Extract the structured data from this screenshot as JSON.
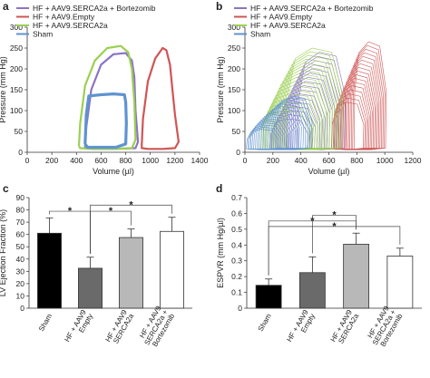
{
  "chart_data": [
    {
      "panel": "a",
      "type": "line",
      "xlabel": "Volume (µl)",
      "ylabel": "Pressure (mm Hg)",
      "xlim": [
        0,
        1400
      ],
      "ylim": [
        0,
        300
      ],
      "xticks": [
        0,
        200,
        400,
        600,
        800,
        1000,
        1200,
        1400
      ],
      "yticks": [
        0,
        50,
        100,
        150,
        200,
        250,
        300
      ],
      "legend_position": "top-left",
      "grid": false,
      "series": [
        {
          "name": "HF + AAV9.SERCA2a + Bortezomib",
          "color": "#8a74c4",
          "x": [
            470,
            480,
            520,
            600,
            700,
            800,
            850,
            870,
            880,
            900,
            880,
            700,
            540,
            470,
            470
          ],
          "y": [
            15,
            60,
            150,
            210,
            235,
            238,
            220,
            180,
            100,
            25,
            10,
            8,
            8,
            10,
            15
          ]
        },
        {
          "name": "HF + AAV9.Empty",
          "color": "#d05555",
          "x": [
            930,
            940,
            980,
            1040,
            1100,
            1130,
            1160,
            1180,
            1200,
            1230,
            1200,
            1100,
            980,
            930,
            930
          ],
          "y": [
            15,
            80,
            170,
            225,
            250,
            245,
            210,
            150,
            90,
            25,
            10,
            8,
            8,
            10,
            15
          ]
        },
        {
          "name": "HF + AAV9.SERCA2a",
          "color": "#9ccf52",
          "x": [
            420,
            430,
            470,
            550,
            650,
            760,
            820,
            850,
            870,
            880,
            850,
            700,
            520,
            430,
            420
          ],
          "y": [
            15,
            70,
            160,
            220,
            250,
            255,
            240,
            200,
            120,
            30,
            10,
            8,
            8,
            10,
            15
          ]
        },
        {
          "name": "Sham",
          "color": "#5f93d1",
          "x": [
            470,
            480,
            500,
            600,
            700,
            790,
            800,
            805,
            800,
            720,
            600,
            490,
            470
          ],
          "y": [
            20,
            90,
            135,
            138,
            140,
            138,
            120,
            70,
            20,
            12,
            12,
            12,
            20
          ]
        }
      ]
    },
    {
      "panel": "b",
      "type": "line",
      "xlabel": "Volume (µl)",
      "ylabel": "Pressure (mm Hg)",
      "xlim": [
        0,
        1200
      ],
      "ylim": [
        0,
        300
      ],
      "xticks": [
        0,
        200,
        400,
        600,
        800,
        1000,
        1200
      ],
      "yticks": [
        0,
        50,
        100,
        150,
        200,
        250,
        300
      ],
      "legend_position": "top-left",
      "grid": false,
      "series": [
        {
          "name": "HF + AAV9.SERCA2a + Bortezomib",
          "color": "#8a74c4",
          "note_loops": "family of shrinking loops (vena cava occlusion)",
          "loops": [
            {
              "xmin": 380,
              "xmax": 720,
              "ymax": 240
            },
            {
              "xmin": 330,
              "xmax": 660,
              "ymax": 200
            },
            {
              "xmin": 280,
              "xmax": 590,
              "ymax": 160
            },
            {
              "xmin": 230,
              "xmax": 520,
              "ymax": 120
            },
            {
              "xmin": 180,
              "xmax": 450,
              "ymax": 80
            }
          ]
        },
        {
          "name": "HF + AAV9.Empty",
          "color": "#d05555",
          "loops": [
            {
              "xmin": 780,
              "xmax": 1010,
              "ymax": 265
            },
            {
              "xmin": 740,
              "xmax": 970,
              "ymax": 230
            },
            {
              "xmin": 700,
              "xmax": 930,
              "ymax": 195
            },
            {
              "xmin": 660,
              "xmax": 890,
              "ymax": 160
            },
            {
              "xmin": 620,
              "xmax": 850,
              "ymax": 120
            }
          ]
        },
        {
          "name": "HF + AAV9.SERCA2a",
          "color": "#9ccf52",
          "loops": [
            {
              "xmin": 300,
              "xmax": 700,
              "ymax": 250
            },
            {
              "xmin": 250,
              "xmax": 640,
              "ymax": 215
            },
            {
              "xmin": 200,
              "xmax": 580,
              "ymax": 180
            },
            {
              "xmin": 150,
              "xmax": 520,
              "ymax": 140
            },
            {
              "xmin": 100,
              "xmax": 460,
              "ymax": 100
            }
          ]
        },
        {
          "name": "Sham",
          "color": "#5f93d1",
          "loops": [
            {
              "xmin": 220,
              "xmax": 480,
              "ymax": 135
            },
            {
              "xmin": 160,
              "xmax": 420,
              "ymax": 115
            },
            {
              "xmin": 100,
              "xmax": 360,
              "ymax": 95
            },
            {
              "xmin": 50,
              "xmax": 300,
              "ymax": 75
            },
            {
              "xmin": 10,
              "xmax": 240,
              "ymax": 55
            }
          ]
        }
      ]
    },
    {
      "panel": "c",
      "type": "bar",
      "ylabel": "LV Ejection Fraction (%)",
      "ylim": [
        0,
        90
      ],
      "yticks": [
        0,
        10,
        20,
        30,
        40,
        50,
        60,
        70,
        80,
        90
      ],
      "categories": [
        "Sham",
        "HF + AAV9\nEmpty",
        "HF + AAV9\nSERCA2a",
        "HF + AAV9\nSERCA2a +\nBortezomib"
      ],
      "values": [
        61,
        32.5,
        57.5,
        62.5
      ],
      "errors": [
        12.5,
        9,
        7,
        11.5
      ],
      "colors": [
        "#000000",
        "#6a6a6a",
        "#b8b8b8",
        "#ffffff"
      ],
      "significance": [
        {
          "from": 0,
          "to": 1,
          "label": "*"
        },
        {
          "from": 1,
          "to": 3,
          "label": "*"
        },
        {
          "from": 1,
          "to": 2,
          "label": "*"
        }
      ]
    },
    {
      "panel": "d",
      "type": "bar",
      "ylabel": "ESPVR (mm Hg/µl)",
      "ylim": [
        0,
        0.7
      ],
      "yticks": [
        "0",
        "0.1",
        "0.2",
        "0.3",
        "0.4",
        "0.5",
        "0.6",
        "0.7"
      ],
      "categories": [
        "Sham",
        "HF + AAV9\nEmpty",
        "HF + AAV9\nSERCA2a",
        "HF + AAV9\nSERCA2a +\nBortezomib"
      ],
      "values": [
        0.145,
        0.225,
        0.405,
        0.33
      ],
      "errors": [
        0.04,
        0.1,
        0.07,
        0.05
      ],
      "colors": [
        "#000000",
        "#6a6a6a",
        "#b8b8b8",
        "#ffffff"
      ],
      "significance": [
        {
          "from": 0,
          "to": 3,
          "label": "*"
        },
        {
          "from": 0,
          "to": 2,
          "label": "*"
        },
        {
          "from": 1,
          "to": 2,
          "label": "*"
        }
      ]
    }
  ]
}
